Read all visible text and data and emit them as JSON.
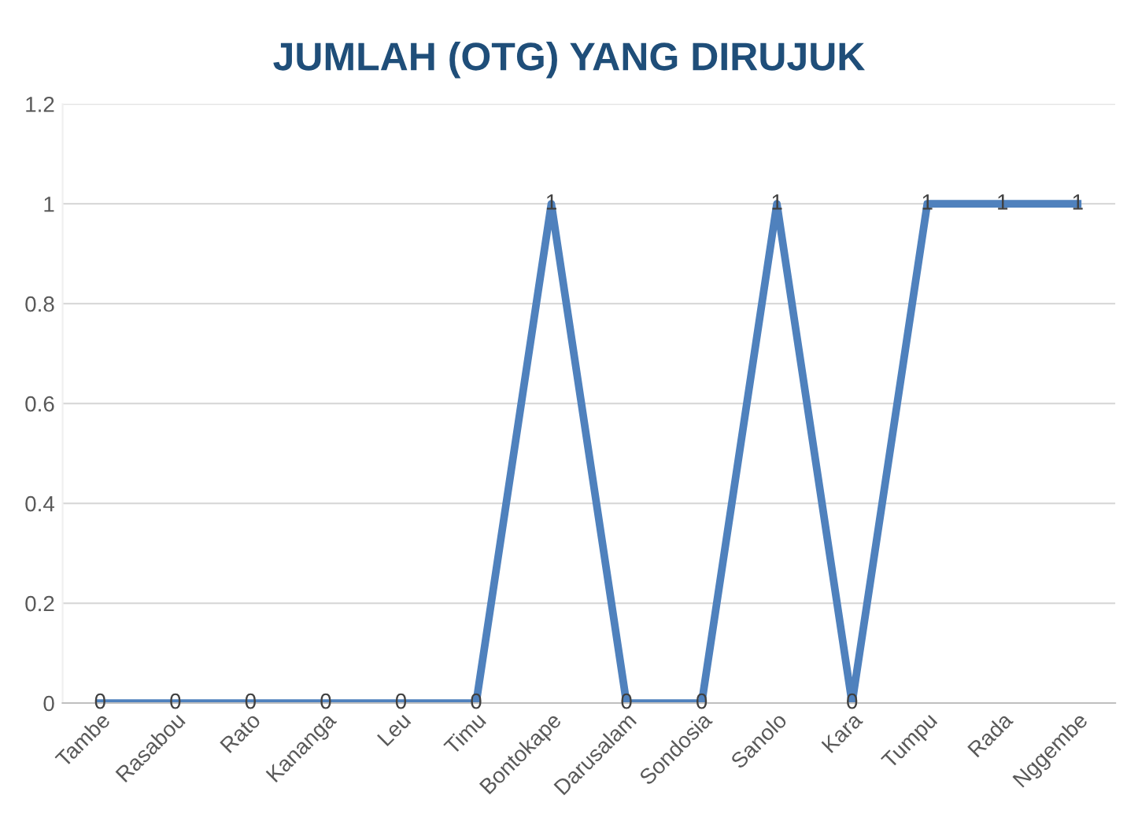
{
  "chart_data": {
    "type": "line",
    "title": "JUMLAH (OTG) YANG DIRUJUK",
    "categories": [
      "Tambe",
      "Rasabou",
      "Rato",
      "Kananga",
      "Leu",
      "Timu",
      "Bontokape",
      "Darusalam",
      "Sondosia",
      "Sanolo",
      "Kara",
      "Tumpu",
      "Rada",
      "Nggembe"
    ],
    "series": [
      {
        "color": "#4f81bd",
        "values": [
          0,
          0,
          0,
          0,
          0,
          0,
          1,
          0,
          0,
          1,
          0,
          1,
          1,
          1
        ]
      }
    ],
    "ylim": [
      0,
      1.2
    ],
    "yticks": [
      0,
      0.2,
      0.4,
      0.6,
      0.8,
      1,
      1.2
    ],
    "grid": "y",
    "legend": false,
    "marker": "none",
    "line_style": "solid",
    "data_labels": true
  }
}
